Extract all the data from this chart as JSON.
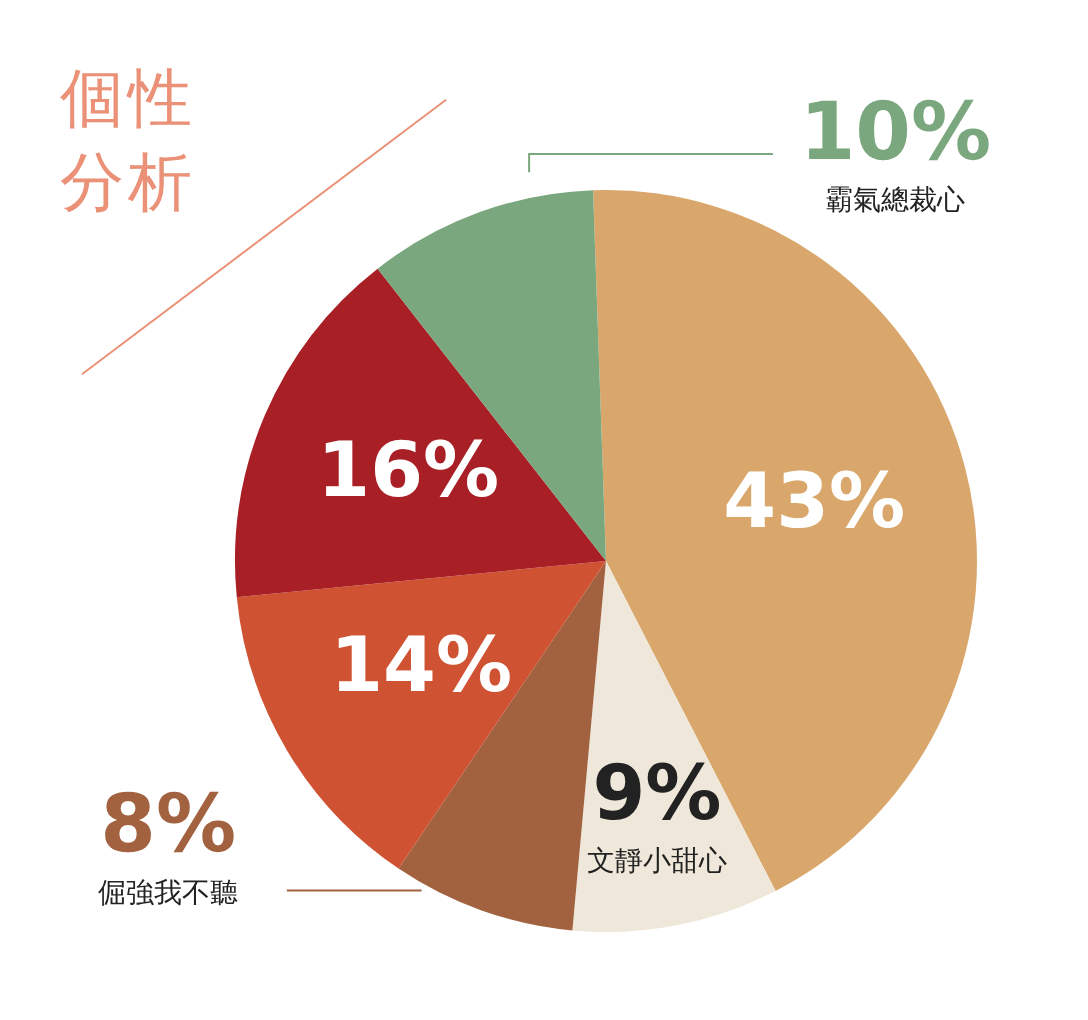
{
  "chart_data": {
    "type": "pie",
    "title": "個性分析",
    "categories": [
      null,
      "文靜小甜心",
      "倔強我不聽",
      null,
      null,
      "霸氣總裁心"
    ],
    "values": [
      43,
      9,
      8,
      14,
      16,
      10
    ],
    "colors": [
      "#d9a76c",
      "#efe8da",
      "#a2623f",
      "#cf5232",
      "#a81f25",
      "#7ba77e"
    ],
    "value_labels": [
      "43%",
      "9%",
      "8%",
      "14%",
      "16%",
      "10%"
    ],
    "legend": false
  }
}
